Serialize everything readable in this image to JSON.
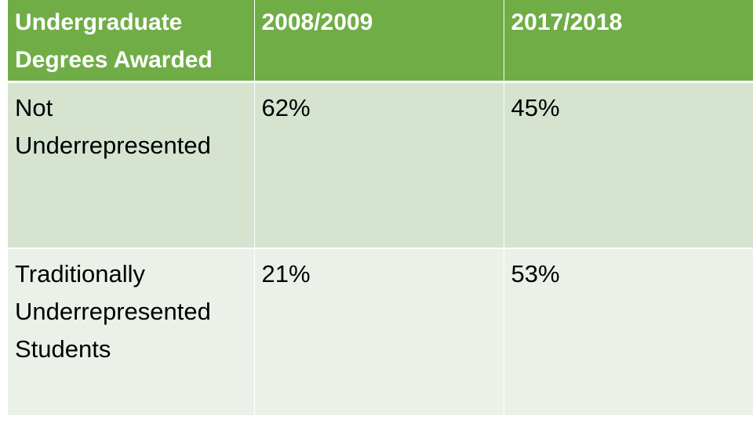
{
  "table": {
    "headers": [
      "Undergraduate\nDegrees Awarded",
      "2008/2009",
      "2017/2018"
    ],
    "rows": [
      {
        "label": "Not\nUnderrepresented",
        "values": [
          "62%",
          "45%"
        ]
      },
      {
        "label": "Traditionally\nUnderrepresented\nStudents",
        "values": [
          "21%",
          "53%"
        ]
      }
    ]
  },
  "colors": {
    "header_bg": "#70ad47",
    "header_text": "#ffffff",
    "row_1_bg": "#d5e3cf",
    "row_2_bg": "#ebf1e9",
    "body_text": "#000000"
  }
}
